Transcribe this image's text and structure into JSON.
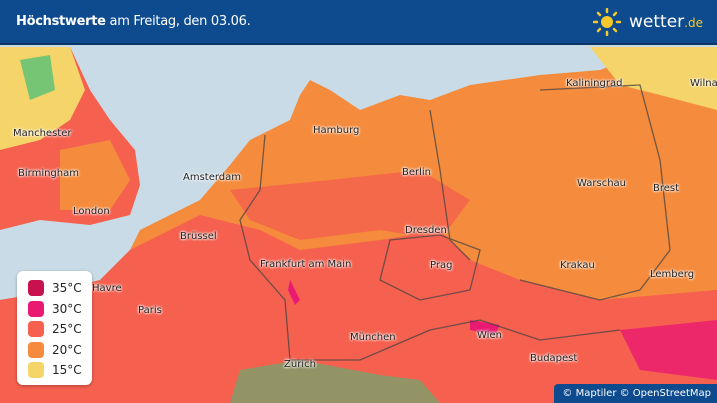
{
  "header": {
    "title_bold": "Höchstwerte",
    "title_rest": " am Freitag, den 03.06.",
    "brand": "wetter",
    "brand_tld": ".de"
  },
  "colors": {
    "header": "#0d4b8e",
    "sea": "#c9dbe6",
    "t35": "#c8114f",
    "t30": "#ea1a72",
    "t25": "#f5604f",
    "t20": "#f58b3c",
    "t15": "#f5d46a",
    "cool": "#3fbf7a"
  },
  "legend": [
    {
      "label": "35°C",
      "color": "#c8114f"
    },
    {
      "label": "30°C",
      "color": "#ea1a72"
    },
    {
      "label": "25°C",
      "color": "#f5604f"
    },
    {
      "label": "20°C",
      "color": "#f58b3c"
    },
    {
      "label": "15°C",
      "color": "#f5d46a"
    }
  ],
  "cities": [
    "Kaliningrad",
    "Wilna",
    "Manchester",
    "Hamburg",
    "Birmingham",
    "Amsterdam",
    "Berlin",
    "Warschau",
    "Brest",
    "London",
    "Brüssel",
    "Dresden",
    "Frankfurt am Main",
    "Prag",
    "Krakau",
    "Lemberg",
    "Havre",
    "Paris",
    "München",
    "Wien",
    "Budapest",
    "Zürich"
  ],
  "attribution": "© Maptiler © OpenStreetMap"
}
